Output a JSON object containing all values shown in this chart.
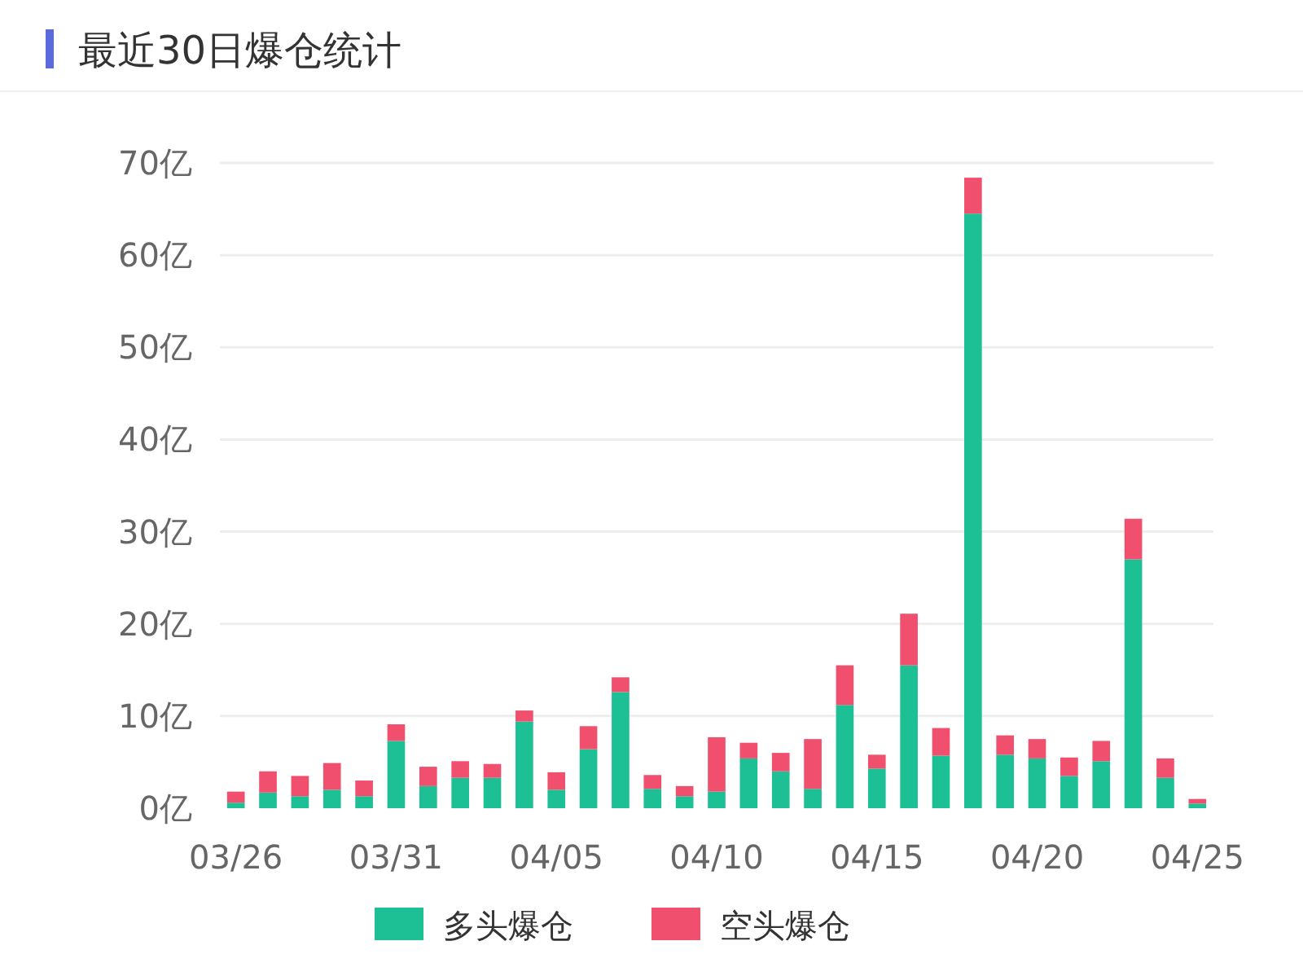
{
  "chart_data": {
    "type": "bar",
    "title": "最近30日爆仓统计",
    "stacked": true,
    "categories": [
      "03/26",
      null,
      null,
      null,
      null,
      "03/31",
      null,
      null,
      null,
      null,
      "04/05",
      null,
      null,
      null,
      null,
      "04/10",
      null,
      null,
      null,
      null,
      "04/15",
      null,
      null,
      null,
      null,
      "04/20",
      null,
      null,
      null,
      null,
      "04/25"
    ],
    "series": [
      {
        "name": "多头爆仓",
        "color": "#1dbf94",
        "values": [
          0.6,
          1.7,
          1.3,
          2.0,
          1.3,
          7.3,
          2.4,
          3.3,
          3.3,
          9.4,
          2.0,
          6.4,
          12.6,
          2.1,
          1.3,
          1.8,
          5.4,
          4.0,
          2.1,
          11.2,
          4.3,
          15.5,
          5.7,
          64.5,
          5.8,
          5.4,
          3.5,
          5.1,
          27.0,
          3.3,
          0.5
        ]
      },
      {
        "name": "空头爆仓",
        "color": "#f0506e",
        "values": [
          1.2,
          2.3,
          2.2,
          2.9,
          1.7,
          1.8,
          2.1,
          1.8,
          1.5,
          1.2,
          1.9,
          2.5,
          1.6,
          1.5,
          1.1,
          5.9,
          1.7,
          2.0,
          5.4,
          4.3,
          1.5,
          5.6,
          3.0,
          3.9,
          2.1,
          2.1,
          2.0,
          2.2,
          4.4,
          2.1,
          0.5
        ]
      }
    ],
    "ylim": [
      0,
      70
    ],
    "yticks": [
      {
        "value": 0,
        "label": "0亿"
      },
      {
        "value": 10,
        "label": "10亿"
      },
      {
        "value": 20,
        "label": "20亿"
      },
      {
        "value": 30,
        "label": "30亿"
      },
      {
        "value": 40,
        "label": "40亿"
      },
      {
        "value": 50,
        "label": "50亿"
      },
      {
        "value": 60,
        "label": "60亿"
      },
      {
        "value": 70,
        "label": "70亿"
      }
    ],
    "grid": "y",
    "legend": "bottom"
  }
}
